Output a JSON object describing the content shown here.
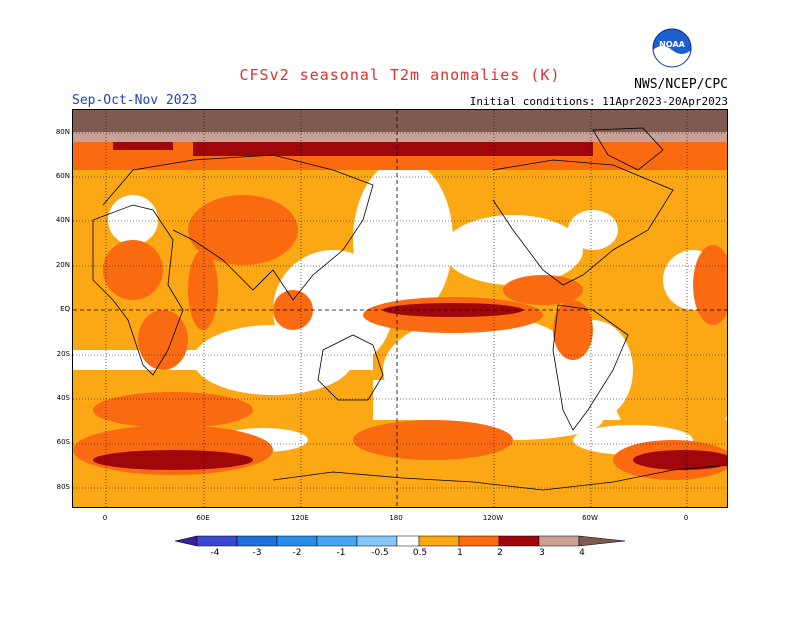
{
  "header": {
    "title": "CFSv2 seasonal T2m anomalies (K)",
    "period": "Sep-Oct-Nov 2023",
    "agency": "NWS/NCEP/CPC",
    "initial_conditions": "Initial conditions: 11Apr2023-20Apr2023",
    "logo_text": "NOAA"
  },
  "map": {
    "lat_labels": [
      "80N",
      "60N",
      "40N",
      "20N",
      "EQ",
      "20S",
      "40S",
      "60S",
      "80S"
    ],
    "lon_labels": [
      "0",
      "60E",
      "120E",
      "180",
      "120W",
      "60W",
      "0"
    ]
  },
  "colorbar": {
    "labels": [
      "-4",
      "-3",
      "-2",
      "-1",
      "-0.5",
      "0.5",
      "1",
      "2",
      "3",
      "4"
    ],
    "colors": [
      "#3a1fa0",
      "#3d48d0",
      "#1e6fd8",
      "#4aa3f0",
      "#86c6f7",
      "#ffffff",
      "#fca714",
      "#fa6a10",
      "#e82a0a",
      "#a0070b",
      "#c9a195",
      "#7e5a4f"
    ]
  }
}
